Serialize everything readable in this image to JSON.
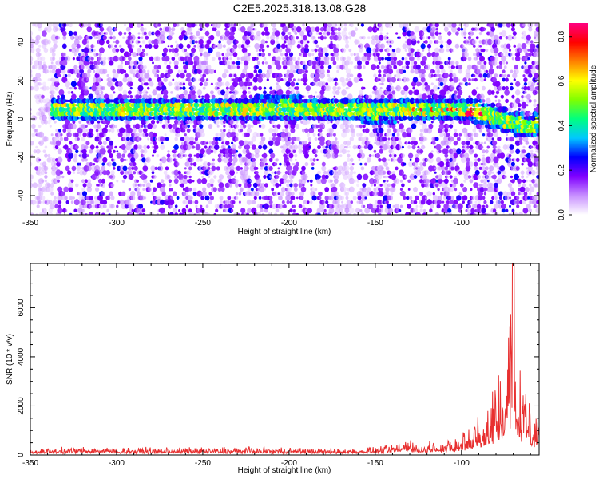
{
  "figure": {
    "title": "C2E5.2025.318.13.08.G28"
  },
  "chart_data": [
    {
      "type": "heatmap",
      "title": "",
      "xlabel": "Height of straight line (km)",
      "ylabel": "Frequency (Hz)",
      "xlim": [
        -350,
        -55
      ],
      "ylim": [
        -50,
        50
      ],
      "x_ticks": [
        -350,
        -300,
        -250,
        -200,
        -150,
        -100
      ],
      "y_ticks": [
        -40,
        -20,
        0,
        20,
        40
      ],
      "colorbar": {
        "label": "Normalized spectral amplitude",
        "range": [
          0.0,
          0.86
        ],
        "ticks": [
          0.0,
          0.2,
          0.4,
          0.6,
          0.8
        ],
        "colors": [
          "#ffffff",
          "#c890ff",
          "#8000ff",
          "#0000ff",
          "#00c8ff",
          "#00ff80",
          "#80ff00",
          "#ffff00",
          "#ff8000",
          "#ff0000",
          "#ff0080"
        ]
      },
      "ridge": {
        "x": [
          -335,
          -300,
          -250,
          -200,
          -180,
          -170,
          -150,
          -120,
          -100,
          -90,
          -80,
          -70,
          -60,
          -55
        ],
        "y": [
          5,
          5,
          5,
          6,
          5,
          5,
          4,
          5,
          5,
          4,
          1,
          -2,
          -4,
          -2
        ],
        "peak_amplitude": 0.85
      }
    },
    {
      "type": "line",
      "title": "",
      "xlabel": "Height of straight line (km)",
      "ylabel": "SNR (10 * v/v)",
      "xlim": [
        -350,
        -55
      ],
      "ylim": [
        0,
        7800
      ],
      "x_ticks": [
        -350,
        -300,
        -250,
        -200,
        -150,
        -100
      ],
      "y_ticks": [
        0,
        2000,
        4000,
        6000
      ],
      "series": [
        {
          "color": "#e83030",
          "envelope": {
            "x": [
              -350,
              -320,
              -300,
              -280,
              -250,
              -230,
              -200,
              -180,
              -160,
              -140,
              -130,
              -125,
              -120,
              -115,
              -110,
              -100,
              -95,
              -90,
              -85,
              -80,
              -75,
              -72,
              -70,
              -67,
              -65,
              -60,
              -55
            ],
            "y": [
              200,
              350,
              300,
              280,
              300,
              320,
              300,
              250,
              280,
              400,
              800,
              400,
              500,
              700,
              550,
              900,
              1200,
              1600,
              2200,
              3000,
              4500,
              6500,
              7800,
              4500,
              3000,
              2200,
              1500
            ]
          }
        }
      ]
    }
  ]
}
